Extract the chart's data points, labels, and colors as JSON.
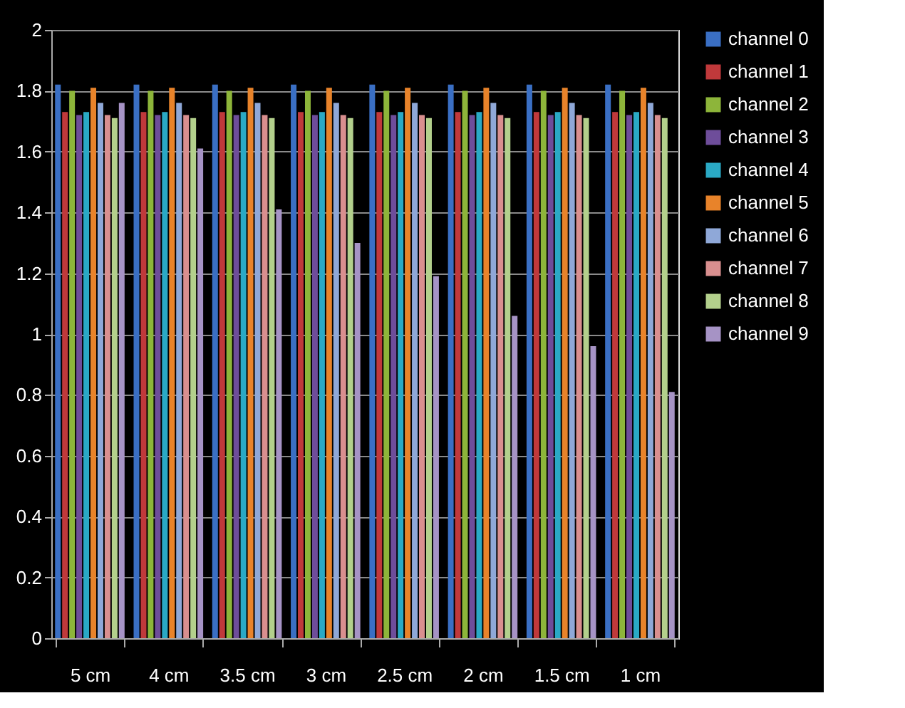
{
  "chart_data": {
    "type": "bar",
    "categories": [
      "5 cm",
      "4 cm",
      "3.5 cm",
      "3 cm",
      "2.5 cm",
      "2 cm",
      "1.5 cm",
      "1 cm"
    ],
    "ylim": [
      0,
      2
    ],
    "yticks": [
      0,
      0.2,
      0.4,
      0.6,
      0.8,
      1,
      1.2,
      1.4,
      1.6,
      1.8,
      2
    ],
    "grid": "y",
    "legend": "right",
    "series": [
      {
        "name": "channel 0",
        "color": "#3a6fc4",
        "values": [
          1.82,
          1.82,
          1.82,
          1.82,
          1.82,
          1.82,
          1.82,
          1.82
        ]
      },
      {
        "name": "channel 1",
        "color": "#c0393b",
        "values": [
          1.73,
          1.73,
          1.73,
          1.73,
          1.73,
          1.73,
          1.73,
          1.73
        ]
      },
      {
        "name": "channel 2",
        "color": "#8db53a",
        "values": [
          1.8,
          1.8,
          1.8,
          1.8,
          1.8,
          1.8,
          1.8,
          1.8
        ]
      },
      {
        "name": "channel 3",
        "color": "#6e4d9a",
        "values": [
          1.72,
          1.72,
          1.72,
          1.72,
          1.72,
          1.72,
          1.72,
          1.72
        ]
      },
      {
        "name": "channel 4",
        "color": "#2aa9c5",
        "values": [
          1.73,
          1.73,
          1.73,
          1.73,
          1.73,
          1.73,
          1.73,
          1.73
        ]
      },
      {
        "name": "channel 5",
        "color": "#e8832a",
        "values": [
          1.81,
          1.81,
          1.81,
          1.81,
          1.81,
          1.81,
          1.81,
          1.81
        ]
      },
      {
        "name": "channel 6",
        "color": "#8fa8d8",
        "values": [
          1.76,
          1.76,
          1.76,
          1.76,
          1.76,
          1.76,
          1.76,
          1.76
        ]
      },
      {
        "name": "channel 7",
        "color": "#d98f8f",
        "values": [
          1.72,
          1.72,
          1.72,
          1.72,
          1.72,
          1.72,
          1.72,
          1.72
        ]
      },
      {
        "name": "channel 8",
        "color": "#b3d08c",
        "values": [
          1.71,
          1.71,
          1.71,
          1.71,
          1.71,
          1.71,
          1.71,
          1.71
        ]
      },
      {
        "name": "channel 9",
        "color": "#a693c5",
        "values": [
          1.76,
          1.61,
          1.41,
          1.3,
          1.19,
          1.06,
          0.96,
          0.81
        ]
      }
    ]
  }
}
